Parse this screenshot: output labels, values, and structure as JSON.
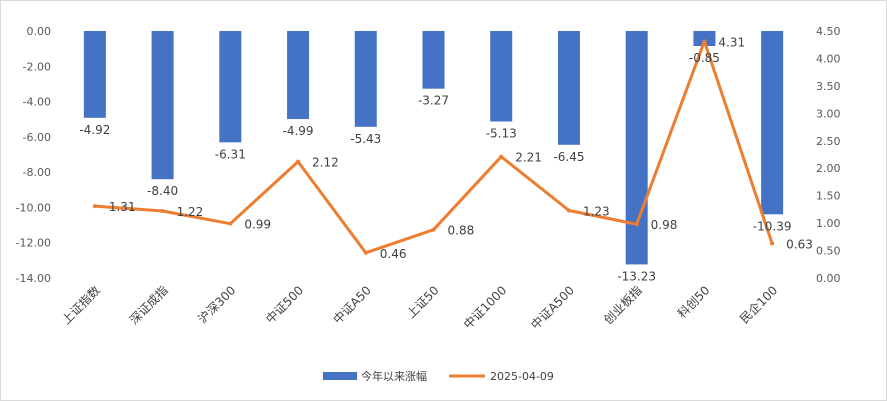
{
  "chart_data": {
    "type": "bar+line",
    "categories": [
      "上证指数",
      "深证成指",
      "沪深300",
      "中证500",
      "中证A50",
      "上证50",
      "中证1000",
      "中证A500",
      "创业板指",
      "科创50",
      "民企100"
    ],
    "series": [
      {
        "name": "今年以来涨幅",
        "type": "bar",
        "axis": "left",
        "color": "#4472C4",
        "values": [
          -4.92,
          -8.4,
          -6.31,
          -4.99,
          -5.43,
          -3.27,
          -5.13,
          -6.45,
          -13.23,
          -0.85,
          -10.39
        ],
        "labels": [
          "-4.92",
          "-8.40",
          "-6.31",
          "-4.99",
          "-5.43",
          "-3.27",
          "-5.13",
          "-6.45",
          "-13.23",
          "-0.85",
          "-10.39"
        ]
      },
      {
        "name": "2025-04-09",
        "type": "line",
        "axis": "right",
        "color": "#ED7D31",
        "values": [
          1.31,
          1.22,
          0.99,
          2.12,
          0.46,
          0.88,
          2.21,
          1.23,
          0.98,
          4.31,
          0.63
        ],
        "labels": [
          "1.31",
          "1.22",
          "0.99",
          "2.12",
          "0.46",
          "0.88",
          "2.21",
          "1.23",
          "0.98",
          "4.31",
          "0.63"
        ]
      }
    ],
    "left_axis": {
      "min": -14,
      "max": 0,
      "step": 2,
      "tick_labels": [
        "0.00",
        "-2.00",
        "-4.00",
        "-6.00",
        "-8.00",
        "-10.00",
        "-12.00",
        "-14.00"
      ]
    },
    "right_axis": {
      "min": 0,
      "max": 4.5,
      "step": 0.5,
      "tick_labels": [
        "4.50",
        "4.00",
        "3.50",
        "3.00",
        "2.50",
        "2.00",
        "1.50",
        "1.00",
        "0.50",
        "0.00"
      ]
    },
    "legend_position": "bottom",
    "grid": false
  }
}
